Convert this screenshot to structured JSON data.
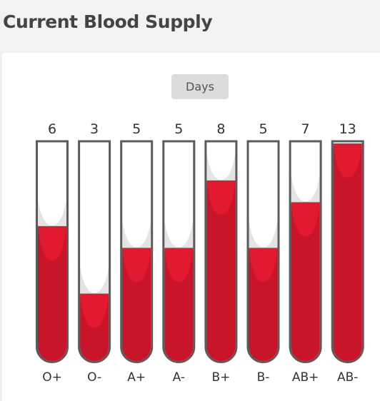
{
  "page": {
    "title": "Current Blood Supply"
  },
  "unit_label": "Days",
  "colors": {
    "blood_light": "#e11a30",
    "blood_dark": "#c91529",
    "tube_outline": "#5b5b5b",
    "tube_empty": "#ffffff",
    "meniscus_shadow": "#e4e4e4"
  },
  "chart_data": {
    "type": "bar",
    "categories": [
      "O+",
      "O-",
      "A+",
      "A-",
      "B+",
      "B-",
      "AB+",
      "AB-"
    ],
    "values": [
      6,
      3,
      5,
      5,
      8,
      5,
      7,
      13
    ],
    "fill_fraction": [
      0.62,
      0.31,
      0.52,
      0.52,
      0.83,
      0.52,
      0.73,
      1.0
    ],
    "xlabel": "",
    "ylabel": "",
    "grid": false,
    "legend": "none"
  }
}
